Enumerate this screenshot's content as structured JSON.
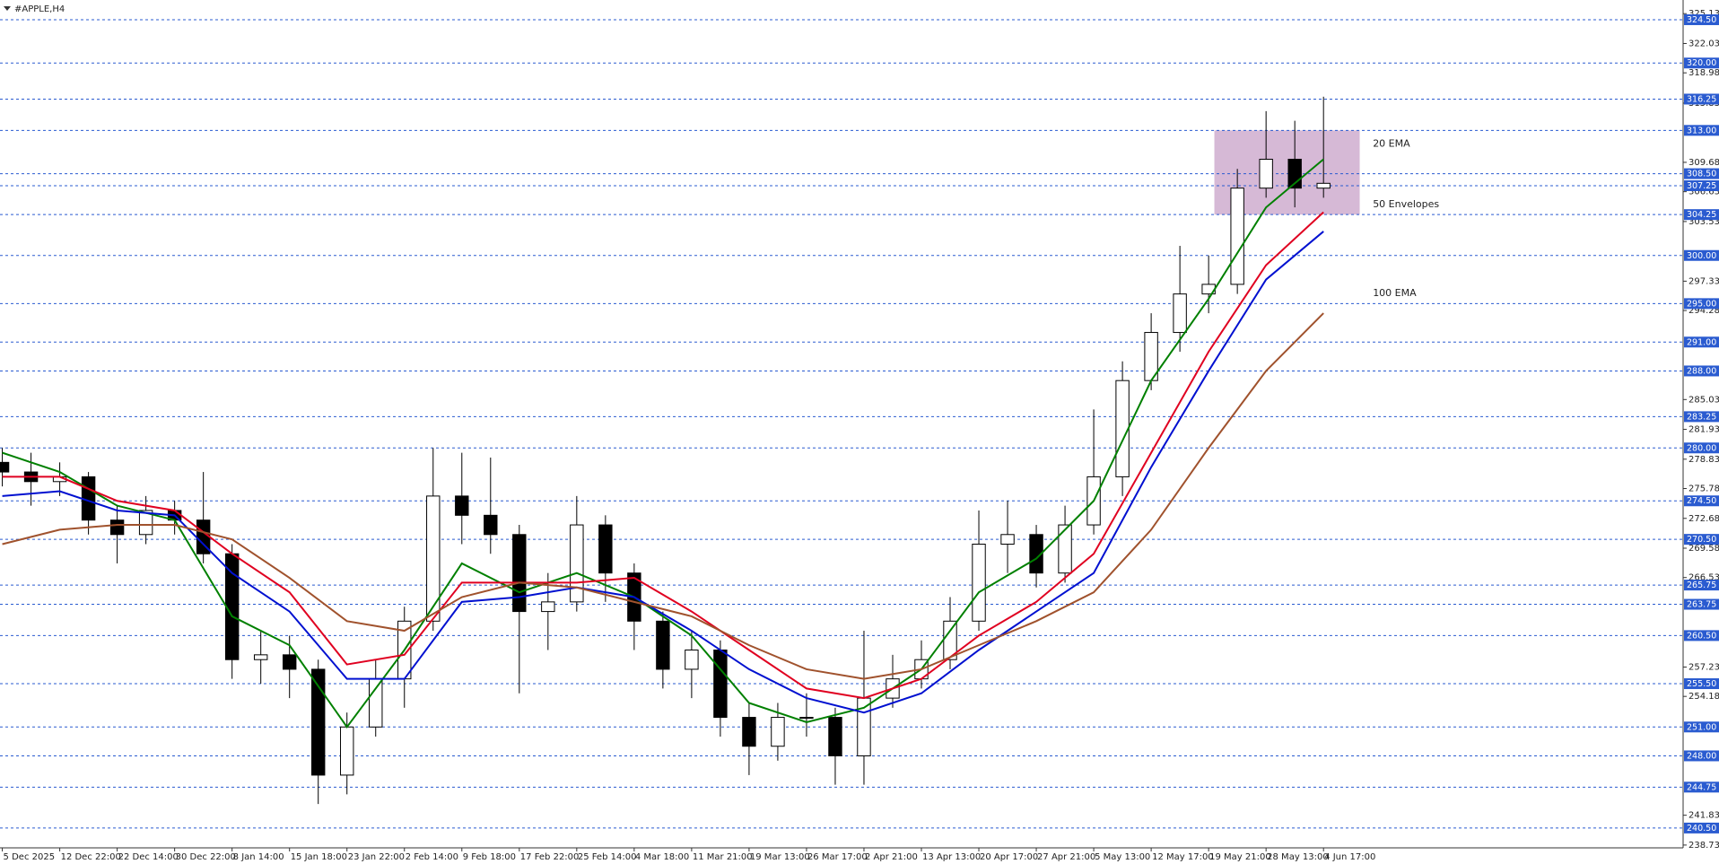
{
  "chart_data": {
    "type": "candlestick",
    "title": "#APPLE,H4",
    "x": [
      0,
      0.5,
      1,
      1.5,
      2,
      2.5,
      3,
      3.5,
      4,
      4.5,
      5,
      5.5,
      6,
      6.5,
      7,
      7.5,
      8,
      8.5,
      9,
      9.5,
      10,
      10.5,
      11,
      11.5,
      12,
      12.5,
      13,
      13.5,
      14,
      14.5,
      15,
      15.5,
      16,
      16.5,
      17,
      17.5,
      18,
      18.5,
      19,
      19.5,
      20,
      20.5,
      21,
      21.5,
      22,
      22.5,
      23
    ],
    "open": [
      278.5,
      277.5,
      276.5,
      277,
      272.5,
      271,
      273.5,
      272.5,
      269,
      258,
      258.5,
      257,
      246,
      251,
      256,
      262,
      275,
      273,
      271,
      263,
      264,
      272,
      267,
      262,
      257,
      259,
      252,
      249,
      252,
      252,
      248,
      254,
      256,
      258,
      262,
      270,
      271,
      267,
      272,
      277,
      287,
      292,
      296,
      297,
      307,
      310,
      307
    ],
    "high": [
      280,
      279.5,
      278.5,
      277.5,
      274,
      275,
      274.5,
      277.5,
      270,
      261,
      260.5,
      258,
      252.5,
      258,
      263.5,
      280,
      279.5,
      279,
      272,
      267,
      275,
      273,
      268,
      263,
      261,
      260,
      253.5,
      253.5,
      254.5,
      253,
      261,
      258.5,
      260,
      264.5,
      273.5,
      274.5,
      272,
      274,
      284,
      289,
      294,
      301,
      300,
      309,
      315,
      314,
      316.5
    ],
    "low": [
      276,
      274,
      275,
      271,
      268,
      270,
      271,
      268,
      256,
      255.5,
      254,
      243,
      244,
      250,
      253,
      261,
      270,
      269,
      254.5,
      259,
      263,
      264,
      259,
      255,
      254,
      250,
      246,
      247.5,
      250,
      245,
      245,
      253,
      255,
      257,
      261,
      267,
      265.5,
      266,
      271,
      275,
      286,
      290,
      294,
      296,
      306,
      305,
      306
    ],
    "close": [
      277.5,
      276.5,
      277,
      272.5,
      271,
      273.5,
      272.5,
      269,
      258,
      258.5,
      257,
      246,
      251,
      256,
      262,
      275,
      273,
      271,
      263,
      264,
      272,
      267,
      262,
      257,
      259,
      252,
      249,
      252,
      252,
      248,
      254,
      256,
      258,
      262,
      270,
      271,
      267,
      272,
      277,
      287,
      292,
      296,
      297,
      307,
      310,
      307,
      307.5
    ],
    "up_color": "#ffffff",
    "down_color": "#000000",
    "series": [
      {
        "name": "20 EMA",
        "color": "#008000",
        "x": [
          0,
          1,
          2,
          3,
          4,
          5,
          6,
          7,
          8,
          9,
          10,
          11,
          12,
          13,
          14,
          15,
          16,
          17,
          18,
          19,
          20,
          21,
          22,
          23
        ],
        "values": [
          279.5,
          277.5,
          274,
          272.5,
          262.5,
          259.5,
          251,
          259,
          268,
          265,
          267,
          264.5,
          260.5,
          253.5,
          251.5,
          253,
          257,
          265,
          268.5,
          274.5,
          287,
          295.5,
          305,
          310
        ]
      },
      {
        "color": "#e00020",
        "x": [
          0,
          1,
          2,
          3,
          4,
          5,
          6,
          7,
          8,
          9,
          10,
          11,
          12,
          13,
          14,
          15,
          16,
          17,
          18,
          19,
          20,
          21,
          22,
          23
        ],
        "values": [
          277,
          277,
          274.5,
          273.5,
          269,
          265,
          257.5,
          258.5,
          266,
          266,
          266,
          266.5,
          263,
          259,
          255,
          254,
          256,
          260.5,
          264,
          269,
          279.5,
          290,
          299,
          304.5
        ]
      },
      {
        "name": "50 Envelopes",
        "color": "#0010d0",
        "x": [
          0,
          1,
          2,
          3,
          4,
          5,
          6,
          7,
          8,
          9,
          10,
          11,
          12,
          13,
          14,
          15,
          16,
          17,
          18,
          19,
          20,
          21,
          22,
          23
        ],
        "values": [
          275,
          275.5,
          273.5,
          273,
          267,
          263,
          256,
          256,
          264,
          264.5,
          265.5,
          264.5,
          261,
          257,
          254,
          252.5,
          254.5,
          259,
          263,
          267,
          278,
          288,
          297.5,
          302.5
        ]
      },
      {
        "name": "100 EMA",
        "color": "#a0522d",
        "x": [
          0,
          1,
          2,
          3,
          4,
          5,
          6,
          7,
          8,
          9,
          10,
          11,
          12,
          13,
          14,
          15,
          16,
          17,
          18,
          19,
          20,
          21,
          22,
          23
        ],
        "values": [
          270,
          271.5,
          272,
          272,
          270.5,
          266.5,
          262,
          261,
          264.5,
          266,
          265.5,
          264,
          262.5,
          259.5,
          257,
          256,
          257,
          259.5,
          262,
          265,
          271.5,
          280,
          288,
          294
        ]
      }
    ],
    "zone": {
      "x": [
        21.1,
        23.63
      ],
      "y": [
        304.25,
        313
      ],
      "color": "#c8a2c8"
    },
    "xlim": [
      -0.04,
      29.26
    ],
    "ylim": [
      238.44,
      325.99
    ],
    "xticks": [
      {
        "value": 0,
        "label": "5 Dec 2025"
      },
      {
        "value": 1,
        "label": "12 Dec 22:00"
      },
      {
        "value": 2,
        "label": "22 Dec 14:00"
      },
      {
        "value": 3,
        "label": "30 Dec 22:00"
      },
      {
        "value": 4,
        "label": "8 Jan 14:00"
      },
      {
        "value": 5,
        "label": "15 Jan 18:00"
      },
      {
        "value": 6,
        "label": "23 Jan 22:00"
      },
      {
        "value": 7,
        "label": "2 Feb 14:00"
      },
      {
        "value": 8,
        "label": "9 Feb 18:00"
      },
      {
        "value": 9,
        "label": "17 Feb 22:00"
      },
      {
        "value": 10,
        "label": "25 Feb 14:00"
      },
      {
        "value": 11,
        "label": "4 Mar 18:00"
      },
      {
        "value": 12,
        "label": "11 Mar 21:00"
      },
      {
        "value": 13,
        "label": "19 Mar 13:00"
      },
      {
        "value": 14,
        "label": "26 Mar 17:00"
      },
      {
        "value": 15,
        "label": "2 Apr 21:00"
      },
      {
        "value": 16,
        "label": "13 Apr 13:00"
      },
      {
        "value": 17,
        "label": "20 Apr 17:00"
      },
      {
        "value": 18,
        "label": "27 Apr 21:00"
      },
      {
        "value": 19,
        "label": "5 May 13:00"
      },
      {
        "value": 20,
        "label": "12 May 17:00"
      },
      {
        "value": 21,
        "label": "19 May 21:00"
      },
      {
        "value": 22,
        "label": "28 May 13:00"
      },
      {
        "value": 23,
        "label": "4 Jun 17:00"
      }
    ],
    "yticks": [
      238.73,
      241.83,
      254.18,
      257.23,
      266.53,
      269.58,
      272.68,
      275.78,
      278.83,
      281.93,
      285.03,
      294.28,
      297.33,
      303.53,
      306.63,
      309.68,
      315.83,
      318.98,
      322.03,
      325.13
    ],
    "levels": [
      {
        "value": 324.5,
        "label": "324.50"
      },
      {
        "value": 320,
        "label": "320.00"
      },
      {
        "value": 316.25,
        "label": "316.25"
      },
      {
        "value": 313,
        "label": "313.00"
      },
      {
        "value": 308.5,
        "label": "308.50"
      },
      {
        "value": 307.25,
        "label": "307.25"
      },
      {
        "value": 304.25,
        "label": "304.25"
      },
      {
        "value": 300,
        "label": "300.00"
      },
      {
        "value": 295,
        "label": "295.00"
      },
      {
        "value": 291,
        "label": "291.00"
      },
      {
        "value": 288,
        "label": "288.00"
      },
      {
        "value": 283.25,
        "label": "283.25"
      },
      {
        "value": 280,
        "label": "280.00"
      },
      {
        "value": 274.5,
        "label": "274.50"
      },
      {
        "value": 270.5,
        "label": "270.50"
      },
      {
        "value": 265.75,
        "label": "265.75"
      },
      {
        "value": 263.75,
        "label": "263.75"
      },
      {
        "value": 260.5,
        "label": "260.50"
      },
      {
        "value": 255.5,
        "label": "255.50"
      },
      {
        "value": 251,
        "label": "251.00"
      },
      {
        "value": 248,
        "label": "248.00"
      },
      {
        "value": 244.75,
        "label": "244.75"
      },
      {
        "value": 240.5,
        "label": "240.50"
      }
    ],
    "level_color": "#2a5bd0"
  }
}
